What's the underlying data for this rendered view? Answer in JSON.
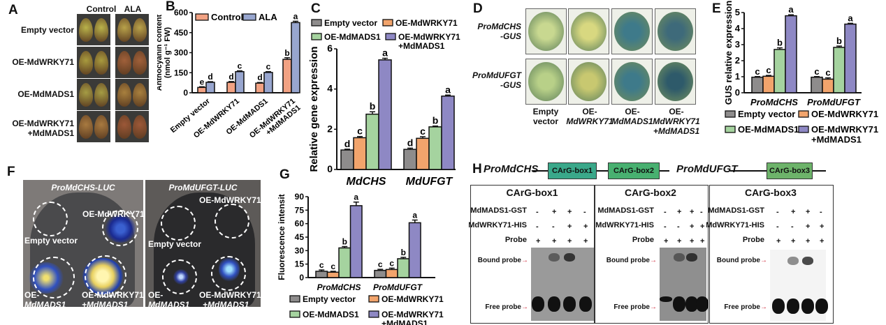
{
  "panel_labels": {
    "A": "A",
    "B": "B",
    "C": "C",
    "D": "D",
    "E": "E",
    "F": "F",
    "G": "G",
    "H": "H"
  },
  "panelA": {
    "columns": [
      "Control",
      "ALA"
    ],
    "rows": [
      "Empty vector",
      "OE-MdWRKY71",
      "OE-MdMADS1",
      "OE-MdWRKY71",
      "+MdMADS1"
    ]
  },
  "panelD": {
    "row_labels": [
      [
        "ProMdCHS",
        "-GUS"
      ],
      [
        "ProMdUFGT",
        "-GUS"
      ]
    ],
    "col_labels": [
      [
        "Empty",
        "vector"
      ],
      [
        "OE-",
        "MdWRKY71"
      ],
      [
        "OE-",
        "MdMADS1"
      ],
      [
        "OE-",
        "MdWRKY71",
        "+MdMADS1"
      ]
    ]
  },
  "panelF": {
    "left_title": "ProMdCHS-LUC",
    "right_title": "ProMdUFGT-LUC",
    "labels": {
      "empty": "Empty vector",
      "wrky": "OE-MdWRKY71",
      "mads_1": "OE-",
      "mads_2": "MdMADS1",
      "combo_1": "OE-MdWRKY71",
      "combo_2": "+MdMADS1"
    }
  },
  "panelH": {
    "promoter1": "ProMdCHS",
    "promoter2": "ProMdUFGT",
    "boxes": [
      "CArG-box1",
      "CArG-box2",
      "CArG-box3"
    ],
    "box_colors": [
      "#3aa88a",
      "#48b070",
      "#6db36a"
    ],
    "row_labels": [
      "MdMADS1-GST",
      "MdWRKY71-HIS",
      "Probe"
    ],
    "lanes": {
      "MdMADS1-GST": [
        "-",
        "+",
        "+",
        "-"
      ],
      "MdWRKY71-HIS": [
        "-",
        "-",
        "+",
        "+"
      ],
      "Probe": [
        "+",
        "+",
        "+",
        "+"
      ]
    },
    "bound_label": "Bound probe",
    "free_label": "Free probe",
    "arrow": "→"
  },
  "chart_data": [
    {
      "panel": "B",
      "type": "bar",
      "categories": [
        "Empty vector",
        "OE-MdWRKY71",
        "OE-MdMADS1",
        "OE-MdWRKY71 +MdMADS1"
      ],
      "series": [
        {
          "name": "Control",
          "color": "#f2a283",
          "values": [
            40,
            78,
            72,
            250
          ],
          "errors": [
            5,
            6,
            5,
            12
          ],
          "letters": [
            "e",
            "d",
            "d",
            "b"
          ]
        },
        {
          "name": "ALA",
          "color": "#98a6cf",
          "values": [
            78,
            158,
            152,
            525
          ],
          "errors": [
            5,
            6,
            6,
            10
          ],
          "letters": [
            "d",
            "c",
            "c",
            "a"
          ]
        }
      ],
      "ylabel": [
        "Anthocyanin content",
        "(nmol g⁻¹ FW)"
      ],
      "ylim": [
        0,
        600
      ],
      "yticks": [
        "0",
        "150",
        "300",
        "450",
        "600"
      ],
      "legend": "top"
    },
    {
      "panel": "C",
      "type": "bar",
      "categories": [
        "MdCHS",
        "MdUFGT"
      ],
      "series": [
        {
          "name": "Empty vector",
          "color": "#8e8c8c",
          "values": [
            0.97,
            1.0
          ],
          "errors": [
            0.04,
            0.06
          ],
          "letters": [
            "d",
            "d"
          ]
        },
        {
          "name": "OE-MdWRKY71",
          "color": "#f2a46c",
          "values": [
            1.58,
            1.55
          ],
          "errors": [
            0.06,
            0.08
          ],
          "letters": [
            "c",
            "c"
          ]
        },
        {
          "name": "OE-MdMADS1",
          "color": "#a5d39f",
          "values": [
            2.75,
            2.12
          ],
          "errors": [
            0.12,
            0.04
          ],
          "letters": [
            "b",
            "b"
          ]
        },
        {
          "name": "OE-MdWRKY71 +MdMADS1",
          "color": "#8e88c4",
          "values": [
            5.45,
            3.65
          ],
          "errors": [
            0.08,
            0.05
          ],
          "letters": [
            "a",
            "a"
          ]
        }
      ],
      "ylabel": [
        "Relative gene expression"
      ],
      "ylim": [
        0,
        6
      ],
      "yticks": [
        "0",
        "2",
        "4",
        "6"
      ],
      "legend": "top"
    },
    {
      "panel": "E",
      "type": "bar",
      "categories": [
        "ProMdCHS",
        "ProMdUFGT"
      ],
      "series": [
        {
          "name": "Empty vector",
          "color": "#8e8c8c",
          "values": [
            0.97,
            0.97
          ],
          "errors": [
            0.04,
            0.04
          ],
          "letters": [
            "c",
            "c"
          ]
        },
        {
          "name": "OE-MdWRKY71",
          "color": "#f2a46c",
          "values": [
            1.03,
            0.85
          ],
          "errors": [
            0.05,
            0.08
          ],
          "letters": [
            "c",
            "c"
          ]
        },
        {
          "name": "OE-MdMADS1",
          "color": "#a5d39f",
          "values": [
            2.7,
            2.83
          ],
          "errors": [
            0.1,
            0.08
          ],
          "letters": [
            "b",
            "b"
          ]
        },
        {
          "name": "OE-MdWRKY71 +MdMADS1",
          "color": "#8e88c4",
          "values": [
            4.8,
            4.28
          ],
          "errors": [
            0.06,
            0.05
          ],
          "letters": [
            "a",
            "a"
          ]
        }
      ],
      "ylabel": [
        "GUS relative expression"
      ],
      "ylim": [
        0,
        5
      ],
      "yticks": [
        "0",
        "1",
        "2",
        "3",
        "4",
        "5"
      ],
      "legend": "bottom"
    },
    {
      "panel": "G",
      "type": "bar",
      "categories": [
        "ProMdCHS",
        "ProMdUFGT"
      ],
      "series": [
        {
          "name": "Empty vector",
          "color": "#8e8c8c",
          "values": [
            7,
            8
          ],
          "errors": [
            1.5,
            1.2
          ],
          "letters": [
            "c",
            "c"
          ]
        },
        {
          "name": "OE-MdWRKY71",
          "color": "#f2a46c",
          "values": [
            6,
            9
          ],
          "errors": [
            1,
            1.5
          ],
          "letters": [
            "c",
            "c"
          ]
        },
        {
          "name": "OE-MdMADS1",
          "color": "#a5d39f",
          "values": [
            33,
            21
          ],
          "errors": [
            1.5,
            1.5
          ],
          "letters": [
            "b",
            "b"
          ]
        },
        {
          "name": "OE-MdWRKY71 +MdMADS1",
          "color": "#8e88c4",
          "values": [
            80,
            61
          ],
          "errors": [
            4,
            3
          ],
          "letters": [
            "a",
            "a"
          ]
        }
      ],
      "ylabel": [
        "Fluorescence intensit"
      ],
      "ylim": [
        0,
        90
      ],
      "yticks": [
        "0",
        "15",
        "30",
        "45",
        "60",
        "75",
        "90"
      ],
      "legend": "bottom"
    }
  ]
}
